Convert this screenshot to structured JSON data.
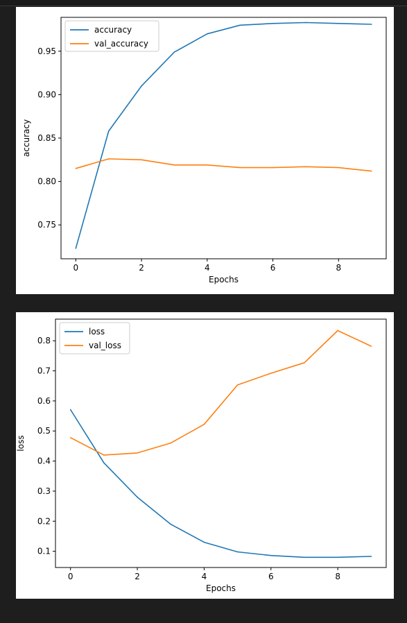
{
  "colors": {
    "page_bg": "#1e1e1e",
    "series_blue": "#1f77b4",
    "series_orange": "#ff7f0e"
  },
  "chart_data": [
    {
      "type": "line",
      "xlabel": "Epochs",
      "ylabel": "accuracy",
      "xlim": [
        -0.45,
        9.45
      ],
      "ylim": [
        0.711,
        0.989
      ],
      "xticks": [
        0,
        2,
        4,
        6,
        8
      ],
      "yticks": [
        0.75,
        0.8,
        0.85,
        0.9,
        0.95
      ],
      "ytick_labels": [
        "0.75",
        "0.80",
        "0.85",
        "0.90",
        "0.95"
      ],
      "legend": "top-left",
      "grid": false,
      "x": [
        0,
        1,
        2,
        3,
        4,
        5,
        6,
        7,
        8,
        9
      ],
      "series": [
        {
          "name": "accuracy",
          "color": "#1f77b4",
          "values": [
            0.723,
            0.858,
            0.91,
            0.949,
            0.97,
            0.98,
            0.982,
            0.983,
            0.982,
            0.981
          ]
        },
        {
          "name": "val_accuracy",
          "color": "#ff7f0e",
          "values": [
            0.815,
            0.826,
            0.825,
            0.819,
            0.819,
            0.816,
            0.816,
            0.817,
            0.816,
            0.812
          ]
        }
      ]
    },
    {
      "type": "line",
      "xlabel": "Epochs",
      "ylabel": "loss",
      "xlim": [
        -0.45,
        9.45
      ],
      "ylim": [
        0.046,
        0.872
      ],
      "xticks": [
        0,
        2,
        4,
        6,
        8
      ],
      "yticks": [
        0.1,
        0.2,
        0.3,
        0.4,
        0.5,
        0.6,
        0.7,
        0.8
      ],
      "ytick_labels": [
        "0.1",
        "0.2",
        "0.3",
        "0.4",
        "0.5",
        "0.6",
        "0.7",
        "0.8"
      ],
      "legend": "top-left",
      "grid": false,
      "x": [
        0,
        1,
        2,
        3,
        4,
        5,
        6,
        7,
        8,
        9
      ],
      "series": [
        {
          "name": "loss",
          "color": "#1f77b4",
          "values": [
            0.571,
            0.394,
            0.28,
            0.19,
            0.13,
            0.098,
            0.086,
            0.08,
            0.08,
            0.083
          ]
        },
        {
          "name": "val_loss",
          "color": "#ff7f0e",
          "values": [
            0.478,
            0.42,
            0.427,
            0.46,
            0.522,
            0.653,
            0.692,
            0.727,
            0.834,
            0.782
          ]
        }
      ]
    }
  ]
}
